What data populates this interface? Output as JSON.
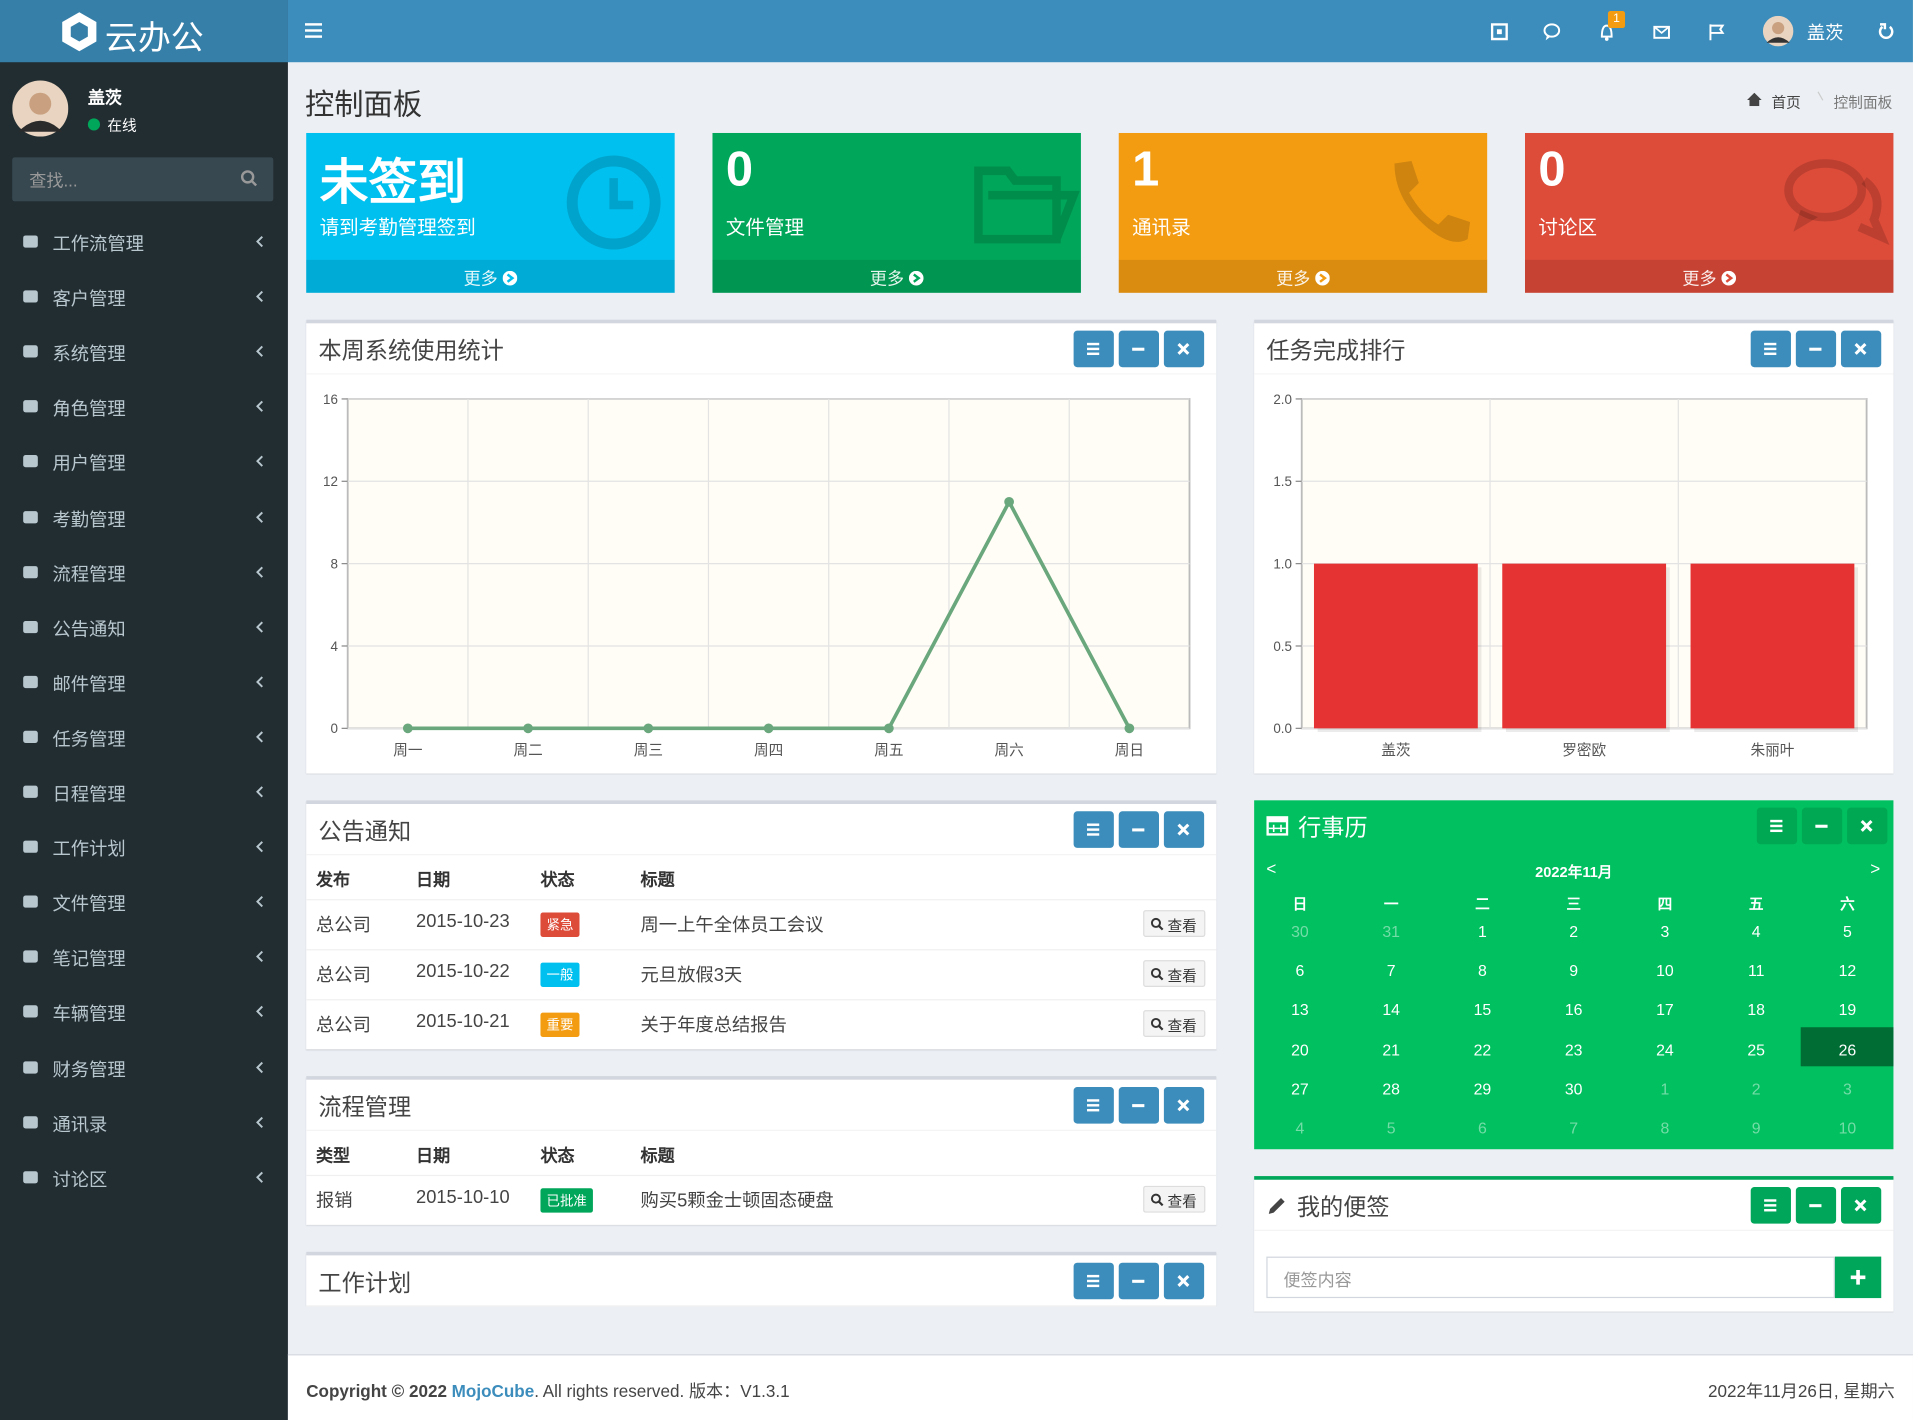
{
  "header": {
    "logo": "云办公",
    "user": "盖茨",
    "badge": "1"
  },
  "sidebar": {
    "user": "盖茨",
    "status": "在线",
    "search_placeholder": "查找...",
    "menu": [
      "工作流管理",
      "客户管理",
      "系统管理",
      "角色管理",
      "用户管理",
      "考勤管理",
      "流程管理",
      "公告通知",
      "邮件管理",
      "任务管理",
      "日程管理",
      "工作计划",
      "文件管理",
      "笔记管理",
      "车辆管理",
      "财务管理",
      "通讯录",
      "讨论区"
    ]
  },
  "page": {
    "title": "控制面板",
    "breadcrumb": [
      "首页",
      "控制面板"
    ]
  },
  "stats": [
    {
      "value": "未签到",
      "label": "请到考勤管理签到",
      "more": "更多",
      "color": "#00c0ef"
    },
    {
      "value": "0",
      "label": "文件管理",
      "more": "更多",
      "color": "#00a65a"
    },
    {
      "value": "1",
      "label": "通讯录",
      "more": "更多",
      "color": "#f39c12"
    },
    {
      "value": "0",
      "label": "讨论区",
      "more": "更多",
      "color": "#dd4b39"
    }
  ],
  "usage_chart": {
    "type": "line",
    "title": "本周系统使用统计",
    "categories": [
      "周一",
      "周二",
      "周三",
      "周四",
      "周五",
      "周六",
      "周日"
    ],
    "values": [
      0,
      0,
      0,
      0,
      0,
      11,
      0
    ],
    "color": "#6aa77c",
    "ylim": [
      0,
      16
    ],
    "yticks": [
      0,
      4,
      8,
      12,
      16
    ],
    "grid": true
  },
  "task_chart": {
    "type": "bar",
    "title": "任务完成排行",
    "categories": [
      "盖茨",
      "罗密欧",
      "朱丽叶"
    ],
    "values": [
      1,
      1,
      1
    ],
    "color": "#e53333",
    "ylim": [
      0,
      2
    ],
    "yticks": [
      {
        "value": 0,
        "label": "0.0"
      },
      {
        "value": 0.5,
        "label": "0.5"
      },
      {
        "value": 1,
        "label": "1.0"
      },
      {
        "value": 1.5,
        "label": "1.5"
      },
      {
        "value": 2,
        "label": "2.0"
      }
    ],
    "grid": true
  },
  "notices": {
    "title": "公告通知",
    "columns": [
      "发布",
      "日期",
      "状态",
      "标题"
    ],
    "button": "查看",
    "rows": [
      {
        "cells": [
          "总公司",
          "2015-10-23",
          "紧急",
          "周一上午全体员工会议"
        ],
        "status_color": "#dd4b39"
      },
      {
        "cells": [
          "总公司",
          "2015-10-22",
          "一般",
          "元旦放假3天"
        ],
        "status_color": "#00c0ef"
      },
      {
        "cells": [
          "总公司",
          "2015-10-21",
          "重要",
          "关于年度总结报告"
        ],
        "status_color": "#f39c12"
      }
    ]
  },
  "process": {
    "title": "流程管理",
    "columns": [
      "类型",
      "日期",
      "状态",
      "标题"
    ],
    "button": "查看",
    "rows": [
      {
        "cells": [
          "报销",
          "2015-10-10",
          "已批准",
          "购买5颗金士顿固态硬盘"
        ],
        "status_color": "#00a65a"
      }
    ]
  },
  "work_plan": {
    "title": "工作计划"
  },
  "calendar": {
    "title": "行事历",
    "month": "2022年11月",
    "prev": "<",
    "next": ">",
    "weekdays": [
      "日",
      "一",
      "二",
      "三",
      "四",
      "五",
      "六"
    ],
    "today": 26,
    "days": [
      30,
      31,
      1,
      2,
      3,
      4,
      5,
      6,
      7,
      8,
      9,
      10,
      11,
      12,
      13,
      14,
      15,
      16,
      17,
      18,
      19,
      20,
      21,
      22,
      23,
      24,
      25,
      26,
      27,
      28,
      29,
      30,
      1,
      2,
      3,
      4,
      5,
      6,
      7,
      8,
      9,
      10
    ]
  },
  "notes": {
    "title": "我的便签",
    "placeholder": "便签内容"
  },
  "footer": {
    "copyright": "Copyright © 2022",
    "brand": "MojoCube",
    "rights": ". All rights reserved. 版本：V1.3.1",
    "date": "2022年11月26日, 星期六"
  }
}
